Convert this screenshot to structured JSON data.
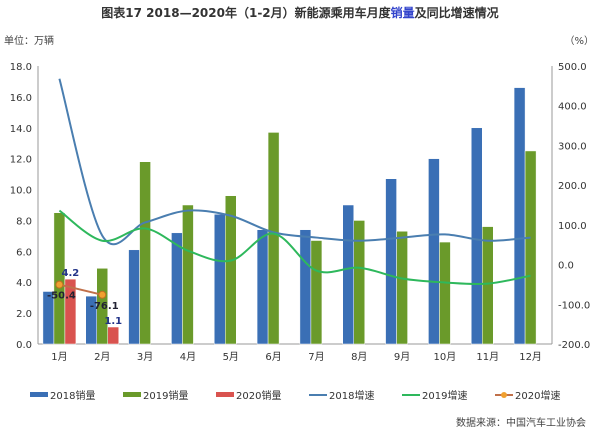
{
  "title": {
    "prefix": "图表17    2018—2020年（1-2月）新能源乘用车月度",
    "highlight": "销量",
    "suffix": "及同比增速情况"
  },
  "unit_left": "单位：万辆",
  "unit_right": "（%）",
  "source": "数据来源：中国汽车工业协会",
  "chart_data": {
    "type": "bar+line",
    "categories": [
      "1月",
      "2月",
      "3月",
      "4月",
      "5月",
      "6月",
      "7月",
      "8月",
      "9月",
      "10月",
      "11月",
      "12月"
    ],
    "y_left": {
      "range": [
        0,
        18
      ],
      "ticks": [
        "0.0",
        "2.0",
        "4.0",
        "6.0",
        "8.0",
        "10.0",
        "12.0",
        "14.0",
        "16.0",
        "18.0"
      ],
      "label": "单位：万辆"
    },
    "y_right": {
      "range": [
        -200,
        500
      ],
      "ticks": [
        "-200.0",
        "-100.0",
        "0.0",
        "100.0",
        "200.0",
        "300.0",
        "400.0",
        "500.0"
      ],
      "label": "（%）"
    },
    "bars": [
      {
        "name": "2018销量",
        "color": "#3a6fb5",
        "values": [
          3.4,
          3.1,
          6.1,
          7.2,
          8.4,
          7.4,
          7.4,
          9.0,
          10.7,
          12.0,
          14.0,
          16.6
        ]
      },
      {
        "name": "2019销量",
        "color": "#6a9a2a",
        "values": [
          8.5,
          4.9,
          11.8,
          9.0,
          9.6,
          13.7,
          6.7,
          8.0,
          7.3,
          6.6,
          7.6,
          12.5
        ]
      },
      {
        "name": "2020销量",
        "color": "#d9534f",
        "values": [
          4.2,
          1.1
        ],
        "labels": [
          "4.2",
          "1.1"
        ]
      }
    ],
    "lines": [
      {
        "name": "2018增速",
        "color": "#4a7eb0",
        "values": [
          468,
          73,
          106,
          136,
          123,
          81,
          68,
          60,
          68,
          76,
          60,
          68
        ]
      },
      {
        "name": "2019增速",
        "color": "#2eb85c",
        "values": [
          136,
          60,
          91,
          35,
          10,
          78,
          -15,
          -8,
          -35,
          -45,
          -48,
          -28
        ]
      },
      {
        "name": "2020增速",
        "color": "#c0704a",
        "marker": "#f0a030",
        "values": [
          -50.4,
          -76.1
        ],
        "labels": [
          "-50.4",
          "-76.1"
        ]
      }
    ],
    "legend_position": "bottom",
    "grid": false
  }
}
